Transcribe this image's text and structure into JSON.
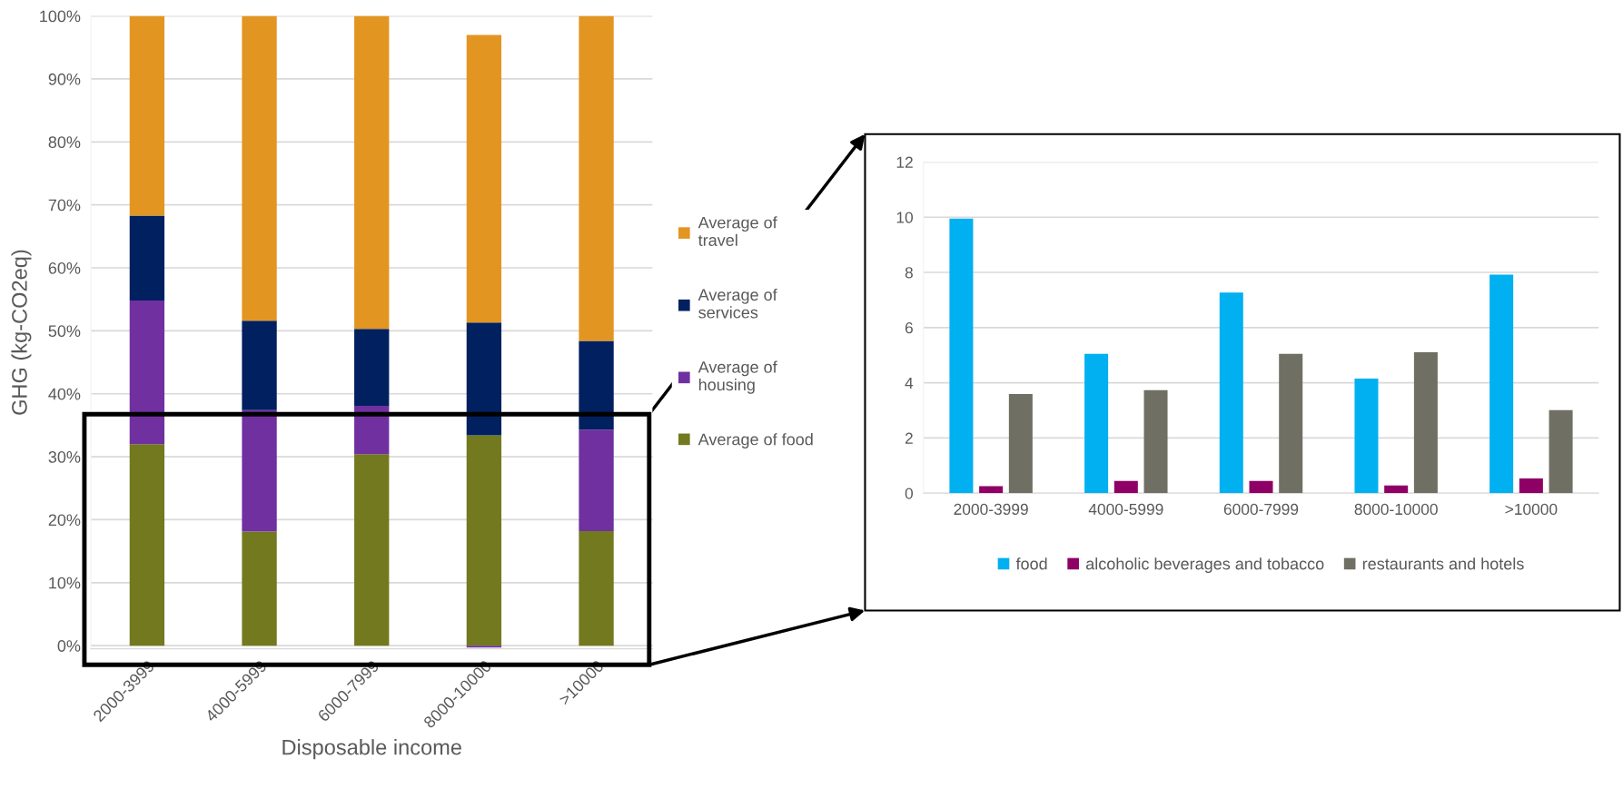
{
  "chart_data": [
    {
      "type": "bar",
      "stacked": true,
      "xlabel": "Disposable income",
      "ylabel": "GHG (kg-CO2eq)",
      "categories": [
        "2000-3999",
        "4000-5999",
        "6000-7999",
        "8000-10000",
        ">10000"
      ],
      "series": [
        {
          "name": "Average of food",
          "color": "#72791f",
          "values": [
            32.0,
            18.1,
            30.4,
            33.4,
            18.2
          ]
        },
        {
          "name": "Average of\nhousing",
          "color": "#7030a0",
          "values": [
            22.8,
            19.3,
            7.7,
            -0.3,
            16.1
          ]
        },
        {
          "name": "Average of\nservices",
          "color": "#002060",
          "values": [
            13.5,
            14.2,
            12.2,
            17.9,
            14.1
          ]
        },
        {
          "name": "Average of\ntravel",
          "color": "#e39521",
          "values": [
            31.7,
            48.4,
            49.7,
            45.7,
            51.6
          ]
        }
      ],
      "ylim": [
        -0.5,
        100
      ],
      "yticks": [
        {
          "value": 0,
          "label": "0%"
        },
        {
          "value": 10,
          "label": "10%"
        },
        {
          "value": 20,
          "label": "20%"
        },
        {
          "value": 30,
          "label": "30%"
        },
        {
          "value": 40,
          "label": "40%"
        },
        {
          "value": 50,
          "label": "50%"
        },
        {
          "value": 60,
          "label": "60%"
        },
        {
          "value": 70,
          "label": "70%"
        },
        {
          "value": 80,
          "label": "80%"
        },
        {
          "value": 90,
          "label": "90%"
        },
        {
          "value": 100,
          "label": "100%"
        }
      ],
      "grid": "y",
      "legend": "right"
    },
    {
      "type": "bar",
      "categories": [
        "2000-3999",
        "4000-5999",
        "6000-7999",
        "8000-10000",
        ">10000"
      ],
      "series": [
        {
          "name": "food",
          "color": "#00b0f0",
          "values": [
            9.95,
            5.05,
            7.27,
            4.15,
            7.92
          ]
        },
        {
          "name": "alcoholic beverages and tobacco",
          "color": "#8e0066",
          "values": [
            0.25,
            0.44,
            0.44,
            0.28,
            0.53
          ]
        },
        {
          "name": "restaurants and hotels",
          "color": "#6f6f63",
          "values": [
            3.59,
            3.73,
            5.05,
            5.11,
            3.01
          ]
        }
      ],
      "ylim": [
        0,
        12
      ],
      "yticks": [
        0,
        2,
        4,
        6,
        8,
        10,
        12
      ],
      "grid": "y",
      "legend": "bottom"
    }
  ]
}
